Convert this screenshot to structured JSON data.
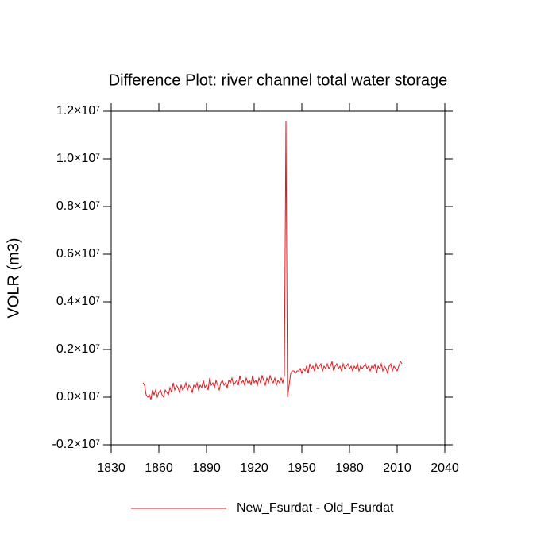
{
  "chart_data": {
    "type": "line",
    "title": "Difference Plot: river channel total water storage",
    "y_label": "VOLR  (m3)",
    "x": [
      1850,
      1851,
      1852,
      1853,
      1854,
      1855,
      1856,
      1857,
      1858,
      1859,
      1860,
      1861,
      1862,
      1863,
      1864,
      1865,
      1866,
      1867,
      1868,
      1869,
      1870,
      1871,
      1872,
      1873,
      1874,
      1875,
      1876,
      1877,
      1878,
      1879,
      1880,
      1881,
      1882,
      1883,
      1884,
      1885,
      1886,
      1887,
      1888,
      1889,
      1890,
      1891,
      1892,
      1893,
      1894,
      1895,
      1896,
      1897,
      1898,
      1899,
      1900,
      1901,
      1902,
      1903,
      1904,
      1905,
      1906,
      1907,
      1908,
      1909,
      1910,
      1911,
      1912,
      1913,
      1914,
      1915,
      1916,
      1917,
      1918,
      1919,
      1920,
      1921,
      1922,
      1923,
      1924,
      1925,
      1926,
      1927,
      1928,
      1929,
      1930,
      1931,
      1932,
      1933,
      1934,
      1935,
      1936,
      1937,
      1938,
      1939,
      1940,
      1941,
      1942,
      1943,
      1944,
      1945,
      1946,
      1947,
      1948,
      1949,
      1950,
      1951,
      1952,
      1953,
      1954,
      1955,
      1956,
      1957,
      1958,
      1959,
      1960,
      1961,
      1962,
      1963,
      1964,
      1965,
      1966,
      1967,
      1968,
      1969,
      1970,
      1971,
      1972,
      1973,
      1974,
      1975,
      1976,
      1977,
      1978,
      1979,
      1980,
      1981,
      1982,
      1983,
      1984,
      1985,
      1986,
      1987,
      1988,
      1989,
      1990,
      1991,
      1992,
      1993,
      1994,
      1995,
      1996,
      1997,
      1998,
      1999,
      2000,
      2001,
      2002,
      2003,
      2004,
      2005,
      2006,
      2007,
      2008,
      2009,
      2010,
      2011,
      2012,
      2013
    ],
    "series": [
      {
        "name": "New_Fsurdat - Old_Fsurdat",
        "color": "#e8141a",
        "values": [
          600000,
          500000,
          100000,
          0,
          100000,
          -100000,
          300000,
          100000,
          300000,
          0,
          200000,
          300000,
          100000,
          0,
          300000,
          200000,
          100000,
          400000,
          200000,
          600000,
          300000,
          500000,
          400000,
          200000,
          500000,
          300000,
          400000,
          600000,
          300000,
          500000,
          400000,
          200000,
          500000,
          400000,
          600000,
          300000,
          500000,
          400000,
          700000,
          400000,
          500000,
          300000,
          800000,
          500000,
          600000,
          400000,
          700000,
          500000,
          300000,
          600000,
          700000,
          500000,
          600000,
          400000,
          700000,
          600000,
          800000,
          500000,
          600000,
          700000,
          500000,
          900000,
          600000,
          700000,
          500000,
          800000,
          600000,
          700000,
          500000,
          900000,
          600000,
          700000,
          500000,
          800000,
          600000,
          900000,
          700000,
          500000,
          800000,
          600000,
          900000,
          700000,
          600000,
          800000,
          500000,
          700000,
          600000,
          800000,
          600000,
          900000,
          11600000,
          0,
          500000,
          1000000,
          1100000,
          1100000,
          1000000,
          1100000,
          1100000,
          1200000,
          1000000,
          1200000,
          1100000,
          1300000,
          1000000,
          1400000,
          1200000,
          1300000,
          1100000,
          1400000,
          1200000,
          1300000,
          1400000,
          1100000,
          1300000,
          1200000,
          1400000,
          1200000,
          1300000,
          1500000,
          1100000,
          1300000,
          1400000,
          1200000,
          1300000,
          1100000,
          1400000,
          1200000,
          1300000,
          1400000,
          1200000,
          1300000,
          1100000,
          1300000,
          1200000,
          1400000,
          1100000,
          1300000,
          1200000,
          1300000,
          1400000,
          1200000,
          1300000,
          1100000,
          1300000,
          1200000,
          1400000,
          1000000,
          1300000,
          1200000,
          1400000,
          1100000,
          1300000,
          1200000,
          1000000,
          1300000,
          1400000,
          1100000,
          1300000,
          1200000,
          1100000,
          1300000,
          1500000,
          1400000
        ]
      }
    ],
    "xlim": [
      1830,
      2040
    ],
    "xticks": [
      1830,
      1860,
      1890,
      1920,
      1950,
      1980,
      2010,
      2040
    ],
    "ylim": [
      -2000000,
      12000000
    ],
    "yticks": [
      {
        "value": -2000000,
        "label": "-0.2×10⁷"
      },
      {
        "value": 0,
        "label": "0.0×10⁷"
      },
      {
        "value": 2000000,
        "label": "0.2×10⁷"
      },
      {
        "value": 4000000,
        "label": "0.4×10⁷"
      },
      {
        "value": 6000000,
        "label": "0.6×10⁷"
      },
      {
        "value": 8000000,
        "label": "0.8×10⁷"
      },
      {
        "value": 10000000,
        "label": "1.0×10⁷"
      },
      {
        "value": 12000000,
        "label": "1.2×10⁷"
      }
    ]
  }
}
